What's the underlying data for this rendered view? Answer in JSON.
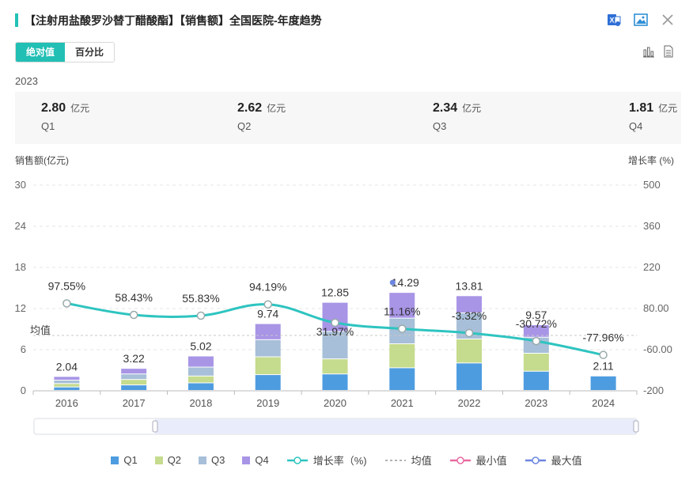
{
  "header": {
    "title": "【注射用盐酸罗沙替丁醋酸酯】【销售额】全国医院-年度趋势",
    "accent": "#22c1b6"
  },
  "toggle": {
    "absolute": "绝对值",
    "percent": "百分比"
  },
  "year_label": "2023",
  "summary": [
    {
      "value": "2.80",
      "unit": "亿元",
      "label": "Q1"
    },
    {
      "value": "2.62",
      "unit": "亿元",
      "label": "Q2"
    },
    {
      "value": "2.34",
      "unit": "亿元",
      "label": "Q3"
    },
    {
      "value": "1.81",
      "unit": "亿元",
      "label": "Q4"
    }
  ],
  "chart_data": {
    "type": "bar",
    "stacked": true,
    "categories": [
      "2016",
      "2017",
      "2018",
      "2019",
      "2020",
      "2021",
      "2022",
      "2023",
      "2024"
    ],
    "series": [
      {
        "name": "Q1",
        "color": "#4e9ce0",
        "values": [
          0.5,
          0.8,
          1.1,
          2.3,
          2.4,
          3.3,
          4.0,
          2.8,
          2.11
        ]
      },
      {
        "name": "Q2",
        "color": "#c5db8d",
        "values": [
          0.5,
          0.8,
          1.0,
          2.6,
          2.2,
          3.5,
          3.5,
          2.62,
          0
        ]
      },
      {
        "name": "Q3",
        "color": "#a7bfd8",
        "values": [
          0.5,
          0.8,
          1.3,
          2.5,
          4.0,
          3.74,
          3.81,
          2.34,
          0
        ]
      },
      {
        "name": "Q4",
        "color": "#a895e6",
        "values": [
          0.54,
          0.82,
          1.62,
          2.34,
          4.25,
          3.75,
          2.5,
          1.81,
          0
        ]
      }
    ],
    "totals": [
      "2.04",
      "3.22",
      "5.02",
      "9.74",
      "12.85",
      "14.29",
      "13.81",
      "9.57",
      "2.11"
    ],
    "growth": {
      "name": "增长率（%)",
      "color": "#2ec4c0",
      "values": [
        97.55,
        58.43,
        55.83,
        94.19,
        31.97,
        11.16,
        -3.32,
        -30.72,
        -77.96
      ],
      "labels": [
        "97.55%",
        "58.43%",
        "55.83%",
        "94.19%",
        "31.97%",
        "11.16%",
        "-3.32%",
        "-30.72%",
        "-77.96%"
      ]
    },
    "average": {
      "label": "均值",
      "value": 8.07
    },
    "max_marker": {
      "category": "2021",
      "label": "14.29"
    },
    "ylabel_left": "销售额(亿元)",
    "ylabel_right": "增长率 (%)",
    "y_left": {
      "min": 0,
      "max": 30,
      "ticks": [
        "0",
        "6",
        "12",
        "18",
        "24",
        "30"
      ]
    },
    "y_right": {
      "min": -200,
      "max": 500,
      "ticks": [
        "-200",
        "-60.00",
        "80.00",
        "220",
        "360",
        "500"
      ]
    },
    "legend": [
      "Q1",
      "Q2",
      "Q3",
      "Q4",
      "增长率（%)",
      "均值",
      "最小值",
      "最大值"
    ]
  }
}
